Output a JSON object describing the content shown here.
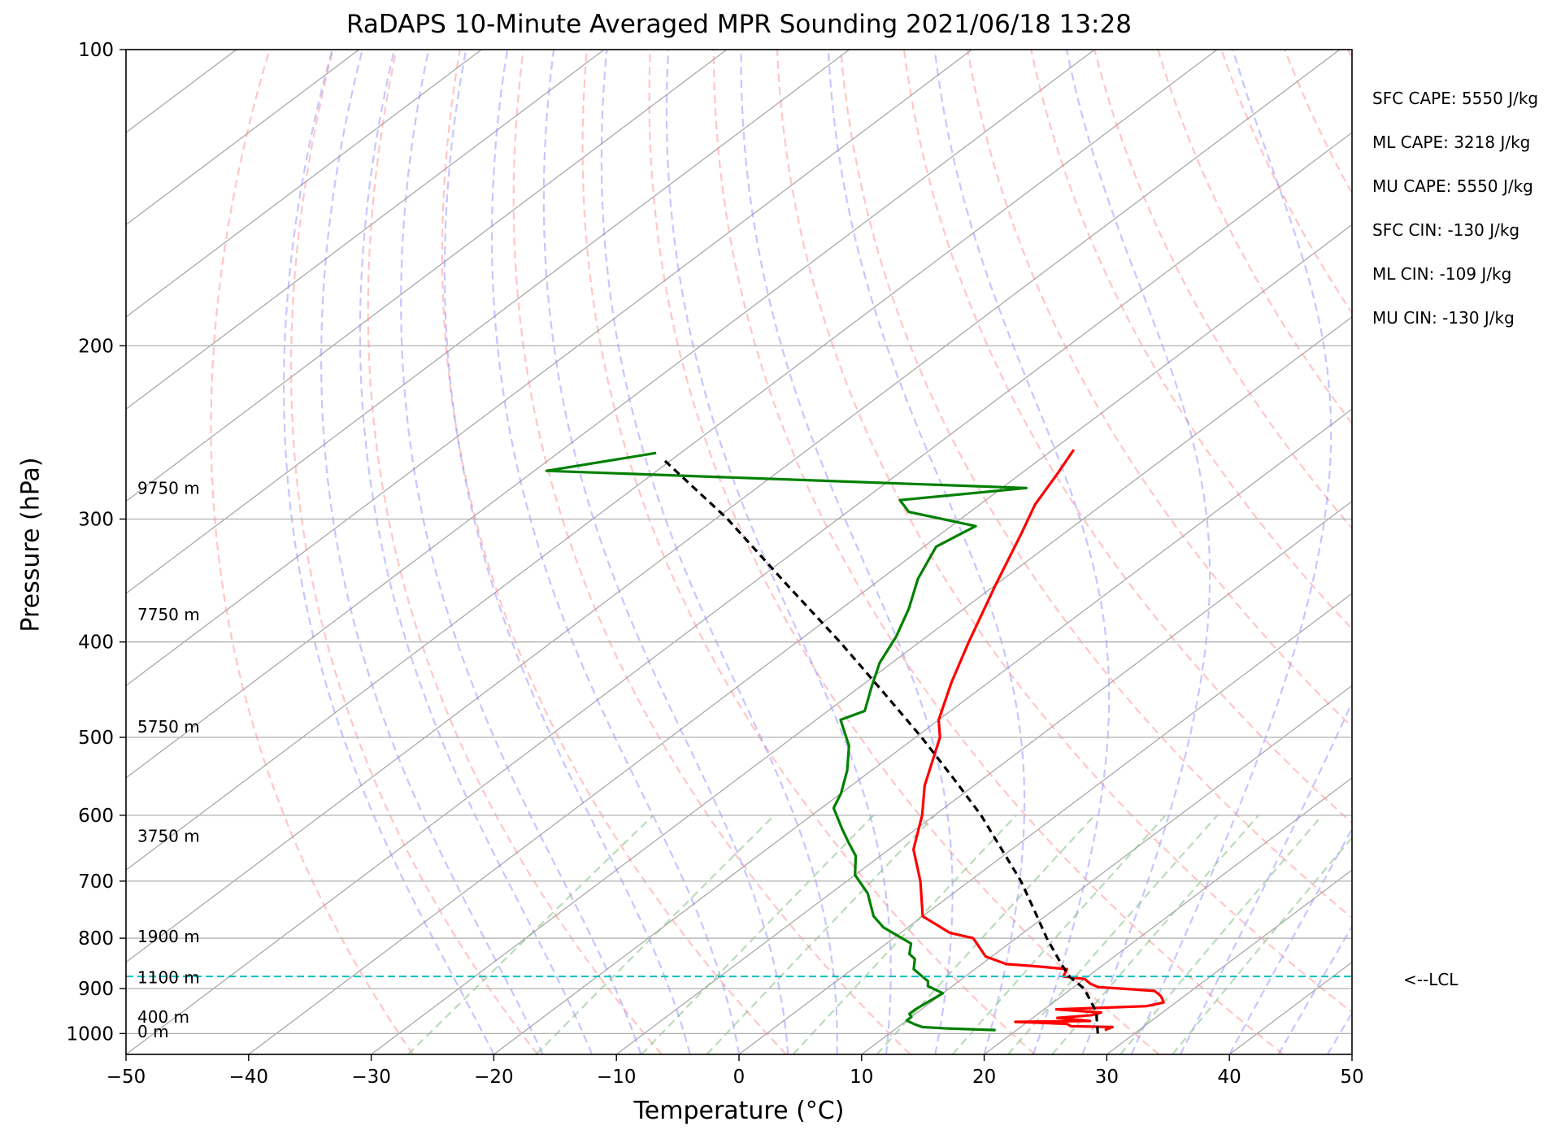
{
  "chart_data": {
    "type": "line",
    "title": "RaDAPS 10-Minute Averaged MPR Sounding 2021/06/18 13:28",
    "xlabel": "Temperature (°C)",
    "ylabel": "Pressure (hPa)",
    "xlim": [
      -50,
      50
    ],
    "ylim": [
      1050,
      100
    ],
    "y_scale": "log",
    "skew_t": true,
    "grid": true,
    "x_ticks": [
      -50,
      -40,
      -30,
      -20,
      -10,
      0,
      10,
      20,
      30,
      40,
      50
    ],
    "x_tick_labels": [
      "−50",
      "−40",
      "−30",
      "−20",
      "−10",
      "0",
      "10",
      "20",
      "30",
      "40",
      "50"
    ],
    "y_ticks": [
      1000,
      900,
      800,
      700,
      600,
      500,
      400,
      300,
      200,
      100
    ],
    "y_tick_labels": [
      "1000",
      "900",
      "800",
      "700",
      "600",
      "500",
      "400",
      "300",
      "200",
      "100"
    ],
    "series": [
      {
        "role": "temperature",
        "color": "#ff0000",
        "pressure": [
          992,
          985,
          983,
          978,
          976,
          973,
          971,
          964,
          958,
          952,
          945,
          938,
          930,
          922,
          915,
          905,
          897,
          890,
          880,
          875,
          860,
          855,
          850,
          835,
          800,
          790,
          760,
          700,
          650,
          600,
          560,
          500,
          480,
          440,
          400,
          350,
          310,
          290,
          270,
          255
        ],
        "temp": [
          27.2,
          27.5,
          24.0,
          23.5,
          22.0,
          19.0,
          25.0,
          22.0,
          24.5,
          25.0,
          21.0,
          28.0,
          29.0,
          28.5,
          28.0,
          27.0,
          22.0,
          21.0,
          20.0,
          18.0,
          17.5,
          15.0,
          12.0,
          9.5,
          6.5,
          4.0,
          0.0,
          -4.0,
          -8.0,
          -11.0,
          -14.0,
          -18.0,
          -20.0,
          -23.0,
          -26.0,
          -30.0,
          -33.5,
          -35.5,
          -37.0,
          -38.3
        ]
      },
      {
        "role": "dewpoint",
        "color": "#008000",
        "pressure": [
          992,
          988,
          985,
          978,
          970,
          962,
          955,
          945,
          910,
          895,
          885,
          875,
          860,
          840,
          830,
          810,
          780,
          760,
          720,
          690,
          660,
          640,
          620,
          590,
          570,
          540,
          510,
          480,
          470,
          445,
          420,
          395,
          370,
          345,
          320,
          305,
          295,
          287,
          279,
          268,
          257
        ],
        "temp": [
          18.3,
          14.0,
          12.0,
          11.0,
          10.0,
          10.0,
          9.5,
          9.5,
          10.0,
          8.0,
          7.5,
          6.5,
          5.0,
          4.0,
          3.0,
          2.0,
          -2.0,
          -4.0,
          -7.0,
          -10.0,
          -12.0,
          -14.0,
          -16.0,
          -19.0,
          -20.0,
          -22.0,
          -24.5,
          -28.0,
          -27.0,
          -29.0,
          -31.0,
          -32.5,
          -34.5,
          -37.0,
          -39.0,
          -38.0,
          -45.0,
          -47.0,
          -38.0,
          -79.0,
          -72.0
        ]
      },
      {
        "role": "parcel",
        "color": "#000000",
        "style": "dashed",
        "pressure": [
          1000,
          950,
          900,
          875,
          850,
          800,
          750,
          700,
          650,
          600,
          550,
          500,
          450,
          400,
          350,
          300,
          260
        ],
        "temp": [
          27.0,
          24.5,
          21.0,
          18.5,
          16.5,
          12.5,
          8.5,
          4.2,
          -0.8,
          -6.2,
          -12.5,
          -19.5,
          -27.5,
          -36.5,
          -47.0,
          -59.0,
          -71.0
        ]
      }
    ],
    "background_lines": {
      "isotherms_color": "#aaaaaa",
      "dry_adiabats_color": "#ff8080",
      "moist_adiabats_color": "#8080ff",
      "mixing_ratio_color": "#80c080"
    },
    "lcl": {
      "pressure": 875,
      "label": "<--LCL",
      "color": "#00c0c0"
    },
    "height_labels": [
      {
        "pressure": 996,
        "label": "0 m"
      },
      {
        "pressure": 962,
        "label": "400 m"
      },
      {
        "pressure": 877,
        "label": "1100 m"
      },
      {
        "pressure": 797,
        "label": "1900 m"
      },
      {
        "pressure": 630,
        "label": "3750 m"
      },
      {
        "pressure": 488,
        "label": "5750 m"
      },
      {
        "pressure": 375,
        "label": "7750 m"
      },
      {
        "pressure": 279,
        "label": "9750 m"
      }
    ],
    "indices": [
      "SFC CAPE: 5550 J/kg",
      "ML CAPE: 3218 J/kg",
      "MU CAPE: 5550 J/kg",
      "SFC CIN: -130 J/kg",
      "ML CIN: -109 J/kg",
      "MU CIN: -130 J/kg"
    ]
  }
}
